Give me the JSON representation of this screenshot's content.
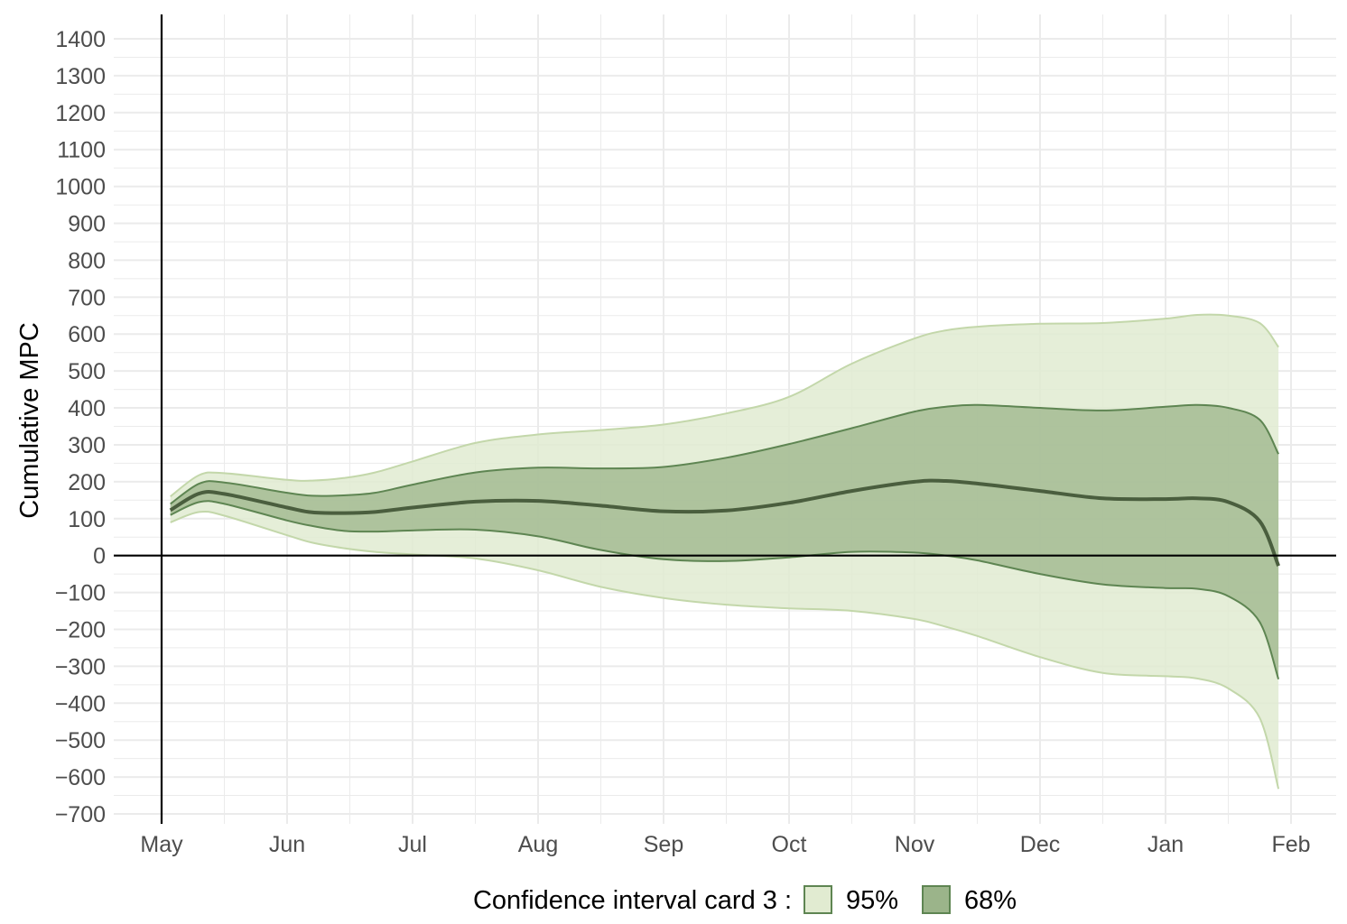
{
  "chart_data": {
    "type": "area",
    "ylabel": "Cumulative MPC",
    "xlabel": "",
    "title": "",
    "x_tick_labels": [
      "May",
      "Jun",
      "Jul",
      "Aug",
      "Sep",
      "Oct",
      "Nov",
      "Dec",
      "Jan",
      "Feb"
    ],
    "y_ticks": [
      -700,
      -600,
      -500,
      -400,
      -300,
      -200,
      -100,
      0,
      100,
      200,
      300,
      400,
      500,
      600,
      700,
      800,
      900,
      1000,
      1100,
      1200,
      1300,
      1400
    ],
    "y_tick_labels": [
      "−700",
      "−600",
      "−500",
      "−400",
      "−300",
      "−200",
      "−100",
      "0",
      "100",
      "200",
      "300",
      "400",
      "500",
      "600",
      "700",
      "800",
      "900",
      "1000",
      "1100",
      "1200",
      "1300",
      "1400"
    ],
    "ylim": [
      -700,
      1400
    ],
    "xlim_months": [
      -0.07,
      9.42
    ],
    "grid": true,
    "legend": {
      "position": "bottom",
      "title": "Confidence interval card 3 :",
      "items": [
        {
          "label": "95%",
          "color": "#e1ebd1"
        },
        {
          "label": "68%",
          "color": "#9bb48a"
        }
      ]
    },
    "colors": {
      "band95_fill": "#e1ebd1",
      "band95_line": "#c3d7aa",
      "band68_fill": "#9bb48a",
      "band68_line": "#5e8552",
      "median_line": "#4a5e3e",
      "grid": "#ebebeb"
    },
    "series": {
      "x_months": [
        0.07,
        0.3,
        0.5,
        1.0,
        1.2,
        1.45,
        1.7,
        2.0,
        2.5,
        3.0,
        3.5,
        4.0,
        4.5,
        5.0,
        5.5,
        6.0,
        6.25,
        6.5,
        7.0,
        7.5,
        8.0,
        8.25,
        8.5,
        8.75,
        8.9
      ],
      "median": [
        123,
        168,
        167,
        130,
        117,
        115,
        118,
        130,
        146,
        148,
        135,
        120,
        122,
        143,
        175,
        200,
        202,
        195,
        175,
        155,
        153,
        155,
        145,
        93,
        -28
      ],
      "upper95": [
        160,
        218,
        223,
        205,
        203,
        210,
        225,
        255,
        305,
        328,
        340,
        355,
        385,
        430,
        520,
        588,
        610,
        620,
        628,
        630,
        642,
        652,
        650,
        630,
        565
      ],
      "lower95": [
        90,
        118,
        108,
        55,
        35,
        20,
        10,
        3,
        -8,
        -40,
        -85,
        -115,
        -133,
        -143,
        -150,
        -172,
        -193,
        -218,
        -275,
        -318,
        -327,
        -333,
        -360,
        -440,
        -632
      ],
      "upper68": [
        140,
        195,
        198,
        170,
        162,
        163,
        170,
        192,
        225,
        238,
        236,
        240,
        265,
        302,
        345,
        390,
        403,
        408,
        400,
        393,
        403,
        408,
        400,
        368,
        275
      ],
      "lower68": [
        110,
        145,
        140,
        95,
        80,
        67,
        65,
        68,
        70,
        52,
        15,
        -10,
        -15,
        -5,
        10,
        8,
        0,
        -13,
        -50,
        -78,
        -88,
        -90,
        -110,
        -180,
        -335
      ]
    }
  }
}
